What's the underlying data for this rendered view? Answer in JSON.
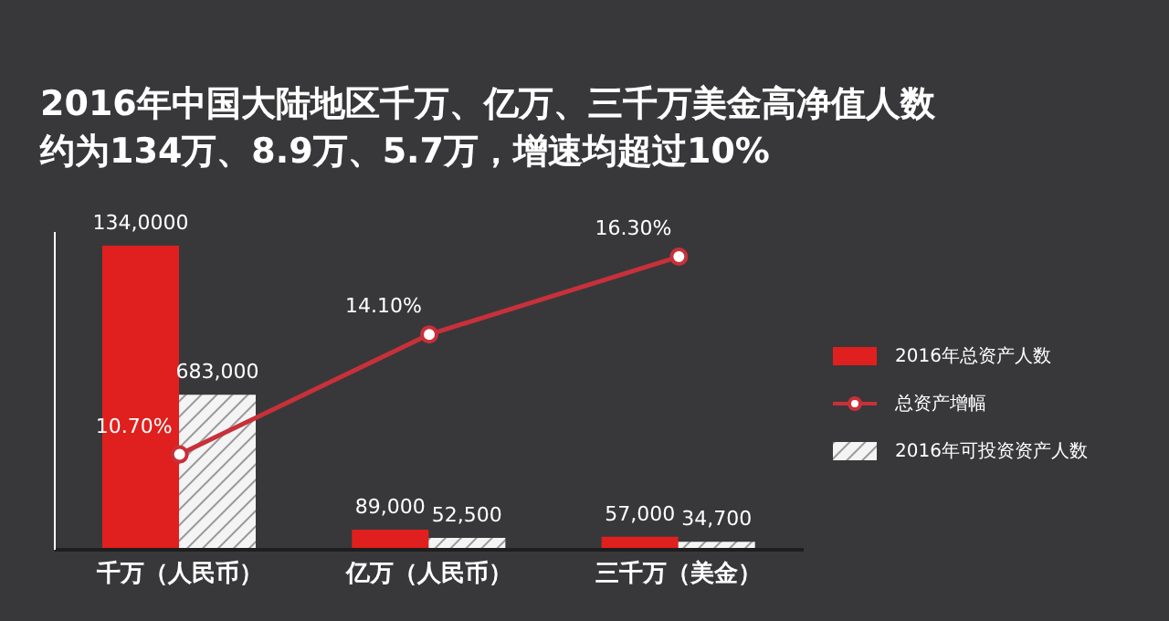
{
  "chart_data": {
    "type": "bar",
    "title": "2016年中国大陆地区千万、亿万、三千万美金高净值人数",
    "subtitle": "约为134万、8.9万、5.7万，增速均超过10%",
    "categories": [
      "千万（人民币）",
      "亿万（人民币）",
      "三千万（美金）"
    ],
    "series": [
      {
        "name": "2016年总资产人数",
        "color": "#e0201e",
        "values": [
          1340000,
          89000,
          57000
        ],
        "value_labels": [
          "134,0000",
          "89,000",
          "57,000"
        ]
      },
      {
        "name": "总资产增幅",
        "type": "line",
        "axis": "y2",
        "color": "#c8303a",
        "marker": "circle",
        "values": [
          10.7,
          14.1,
          16.3
        ],
        "value_labels": [
          "10.70%",
          "14.10%",
          "16.30%"
        ]
      },
      {
        "name": "2016年可投资资产人数",
        "color": "#dddddd",
        "values": [
          683000,
          52500,
          34700
        ],
        "value_labels": [
          "683,000",
          "52,500",
          "34,700"
        ]
      }
    ],
    "ylim": [
      0,
      1400000
    ],
    "y2lim": [
      8,
      17
    ],
    "tick_labels": "x",
    "legend": "right"
  }
}
